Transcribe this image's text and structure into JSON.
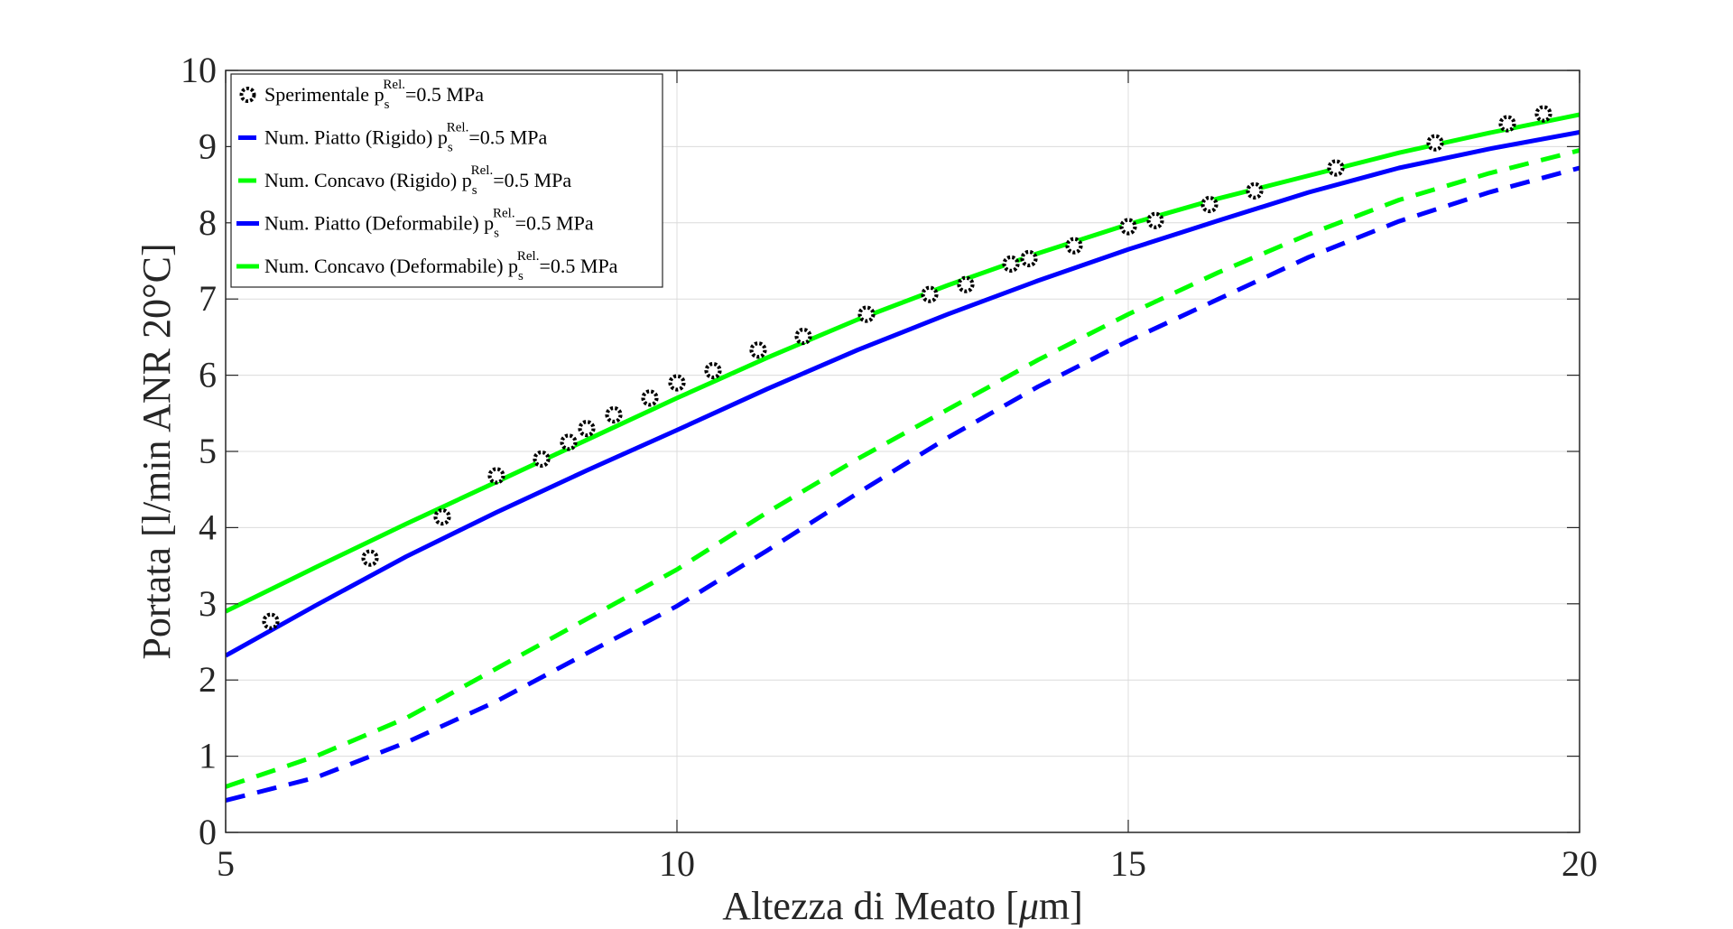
{
  "chart_data": {
    "type": "line",
    "title": "",
    "xlabel_prefix": "Altezza di Meato [",
    "xlabel_mu": "μ",
    "xlabel_suffix": "m]",
    "ylabel": "Portata [l/min ANR 20°C]",
    "xlim": [
      5,
      20
    ],
    "ylim": [
      0,
      10
    ],
    "xticks": [
      5,
      10,
      15,
      20
    ],
    "yticks": [
      0,
      1,
      2,
      3,
      4,
      5,
      6,
      7,
      8,
      9,
      10
    ],
    "grid": true,
    "legend_position": "top-left",
    "series": [
      {
        "name": "Sperimentale",
        "legend_sub": "s",
        "legend_sup": "Rel.",
        "legend_suffix": "=0.5 MPa",
        "kind": "scatter",
        "color": "#000000",
        "x": [
          5.5,
          6.6,
          7.4,
          8.0,
          8.5,
          8.8,
          9.0,
          9.3,
          9.7,
          10.0,
          10.4,
          10.9,
          11.4,
          12.1,
          12.8,
          13.2,
          13.7,
          13.9,
          14.4,
          15.0,
          15.3,
          15.9,
          16.4,
          17.3,
          18.4,
          19.2,
          19.6
        ],
        "y": [
          2.77,
          3.6,
          4.14,
          4.68,
          4.9,
          5.12,
          5.3,
          5.48,
          5.7,
          5.9,
          6.06,
          6.33,
          6.51,
          6.8,
          7.06,
          7.19,
          7.46,
          7.53,
          7.7,
          7.95,
          8.03,
          8.24,
          8.42,
          8.72,
          9.05,
          9.3,
          9.43
        ]
      },
      {
        "name": "Num. Piatto (Rigido)",
        "legend_sub": "s",
        "legend_sup": "Rel.",
        "legend_suffix": "=0.5 MPa",
        "kind": "line",
        "dash": true,
        "color": "#0000ff",
        "x": [
          5,
          6,
          7,
          8,
          9,
          10,
          11,
          12,
          13,
          14,
          15,
          16,
          17,
          18,
          19,
          20
        ],
        "y": [
          0.42,
          0.72,
          1.18,
          1.72,
          2.35,
          2.97,
          3.7,
          4.45,
          5.18,
          5.85,
          6.45,
          7.0,
          7.55,
          8.02,
          8.4,
          8.72
        ]
      },
      {
        "name": "Num. Concavo (Rigido)",
        "legend_sub": "s",
        "legend_sup": "Rel.",
        "legend_suffix": "=0.5 MPa",
        "kind": "line",
        "dash": true,
        "color": "#00ff00",
        "x": [
          5,
          6,
          7,
          8,
          9,
          10,
          11,
          12,
          13,
          14,
          15,
          16,
          17,
          18,
          19,
          20
        ],
        "y": [
          0.6,
          1.0,
          1.5,
          2.15,
          2.8,
          3.45,
          4.2,
          4.9,
          5.55,
          6.2,
          6.8,
          7.35,
          7.85,
          8.3,
          8.65,
          8.95
        ]
      },
      {
        "name": "Num. Piatto (Deformabile)",
        "legend_sub": "s",
        "legend_sup": "Rel.",
        "legend_suffix": "=0.5 MPa",
        "kind": "line",
        "dash": false,
        "color": "#0000ff",
        "x": [
          5,
          6,
          7,
          8,
          9,
          10,
          11,
          12,
          13,
          14,
          15,
          16,
          17,
          18,
          19,
          20
        ],
        "y": [
          2.32,
          2.98,
          3.62,
          4.2,
          4.75,
          5.28,
          5.82,
          6.33,
          6.8,
          7.24,
          7.65,
          8.03,
          8.4,
          8.72,
          8.97,
          9.19
        ]
      },
      {
        "name": "Num. Concavo (Deformabile)",
        "legend_sub": "s",
        "legend_sup": "Rel.",
        "legend_suffix": "=0.5 MPa",
        "kind": "line",
        "dash": false,
        "color": "#00ff00",
        "x": [
          5,
          6,
          7,
          8,
          9,
          10,
          11,
          12,
          13,
          14,
          15,
          16,
          17,
          18,
          19,
          20
        ],
        "y": [
          2.9,
          3.48,
          4.05,
          4.6,
          5.15,
          5.7,
          6.23,
          6.73,
          7.18,
          7.6,
          7.98,
          8.32,
          8.62,
          8.92,
          9.18,
          9.42
        ]
      }
    ]
  }
}
